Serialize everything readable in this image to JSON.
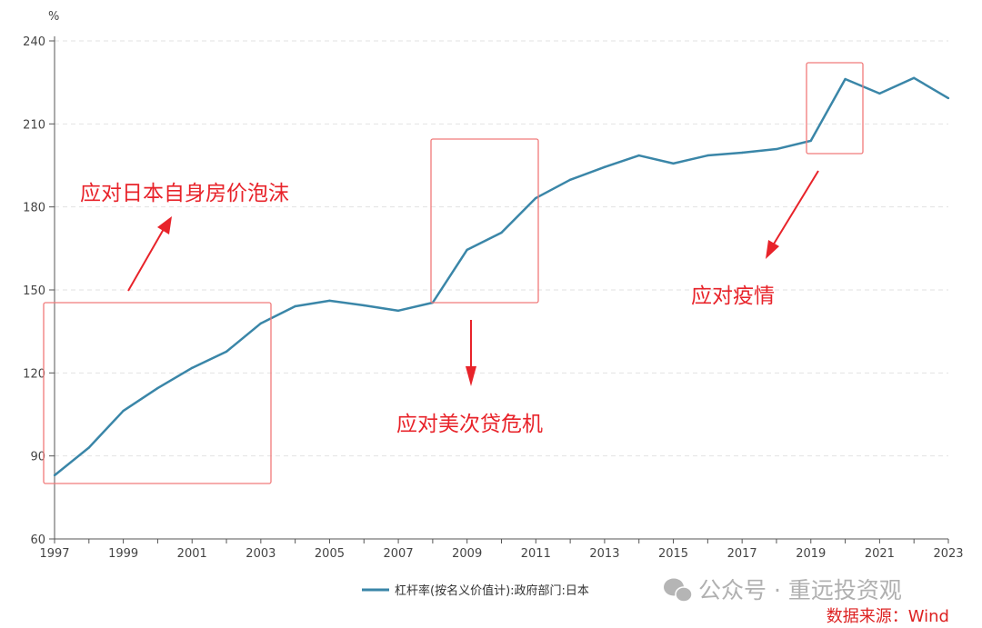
{
  "chart_data": {
    "type": "line",
    "title": "",
    "ylabel": "%",
    "xlabel": "",
    "ylim": [
      60,
      240
    ],
    "yticks": [
      60,
      90,
      120,
      150,
      180,
      210,
      240
    ],
    "xlim": [
      1997,
      2023
    ],
    "xticks": [
      1997,
      1999,
      2001,
      2003,
      2005,
      2007,
      2009,
      2011,
      2013,
      2015,
      2017,
      2019,
      2021,
      2023
    ],
    "grid": true,
    "legend_position": "bottom-center",
    "series": [
      {
        "name": "杠杆率(按名义价值计):政府部门:日本",
        "color": "#3a86a8",
        "x": [
          1997,
          1998,
          1999,
          2000,
          2001,
          2002,
          2003,
          2004,
          2005,
          2006,
          2007,
          2008,
          2009,
          2010,
          2011,
          2012,
          2013,
          2014,
          2015,
          2016,
          2017,
          2018,
          2019,
          2020,
          2021,
          2022,
          2023
        ],
        "values": [
          83,
          93,
          106.3,
          114.5,
          121.8,
          127.7,
          137.9,
          144.1,
          146.1,
          144.4,
          142.5,
          145.4,
          164.5,
          170.7,
          183.2,
          189.8,
          194.4,
          198.6,
          195.7,
          198.6,
          199.6,
          200.9,
          203.9,
          226.2,
          221,
          226.6,
          219.3
        ]
      }
    ],
    "annotations": [
      {
        "text": "应对日本自身房价泡沫",
        "range": [
          1997,
          2003
        ]
      },
      {
        "text": "应对美次贷危机",
        "range": [
          2008,
          2011
        ]
      },
      {
        "text": "应对疫情",
        "range": [
          2019,
          2020
        ]
      }
    ]
  },
  "watermark": "公众号 · 重远投资观",
  "source": "数据来源：Wind",
  "annotation_color": "#e8232a"
}
